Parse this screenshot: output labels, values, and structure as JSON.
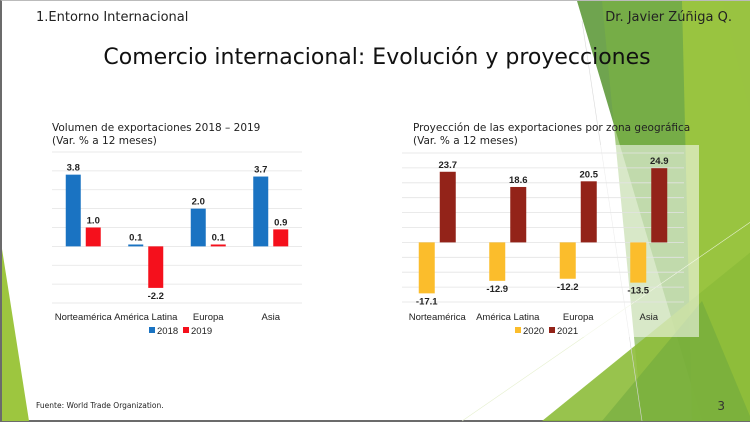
{
  "header": {
    "section_label": "1.Entorno Internacional",
    "author": "Dr. Javier Zúñiga Q.",
    "title": "Comercio internacional: Evolución y proyecciones"
  },
  "footer": {
    "source": "Fuente: World Trade Organization.",
    "page_number": "3"
  },
  "theme": {
    "green_dark": "#5f9a3c",
    "green_mid": "#7ab244",
    "green_light": "#9dc63f"
  },
  "chart_data": [
    {
      "type": "bar",
      "title": "Volumen de exportaciones 2018 – 2019",
      "subtitle": "(Var. % a 12 meses)",
      "xlabel": "",
      "ylabel": "",
      "categories": [
        "Norteamérica",
        "América Latina",
        "Europa",
        "Asia"
      ],
      "series": [
        {
          "name": "2018",
          "color": "#1a73c2",
          "values": [
            3.8,
            0.1,
            2.0,
            3.7
          ],
          "labels": [
            "3.8",
            "0.1",
            "2.0",
            "3.7"
          ]
        },
        {
          "name": "2019",
          "color": "#f5101c",
          "values": [
            1.0,
            -2.2,
            0.1,
            0.9
          ],
          "labels": [
            "1.0",
            "-2.2",
            "0.1",
            "0.9"
          ]
        }
      ],
      "ylim": [
        -3,
        5
      ],
      "grid": true,
      "legend": "bottom"
    },
    {
      "type": "bar",
      "title": "Proyección de las exportaciones por zona geográfica",
      "subtitle": "(Var. % a 12 meses)",
      "xlabel": "",
      "ylabel": "",
      "categories": [
        "Norteamérica",
        "América Latina",
        "Europa",
        "Asia"
      ],
      "series": [
        {
          "name": "2020",
          "color": "#fbbd2c",
          "values": [
            -17.1,
            -12.9,
            -12.2,
            -13.5
          ],
          "labels": [
            "-17.1",
            "-12.9",
            "-12.2",
            "-13.5"
          ]
        },
        {
          "name": "2021",
          "color": "#932319",
          "values": [
            23.7,
            18.6,
            20.5,
            24.9
          ],
          "labels": [
            "23.7",
            "18.6",
            "20.5",
            "24.9"
          ]
        }
      ],
      "ylim": [
        -20,
        30
      ],
      "grid": true,
      "legend": "bottom"
    }
  ]
}
